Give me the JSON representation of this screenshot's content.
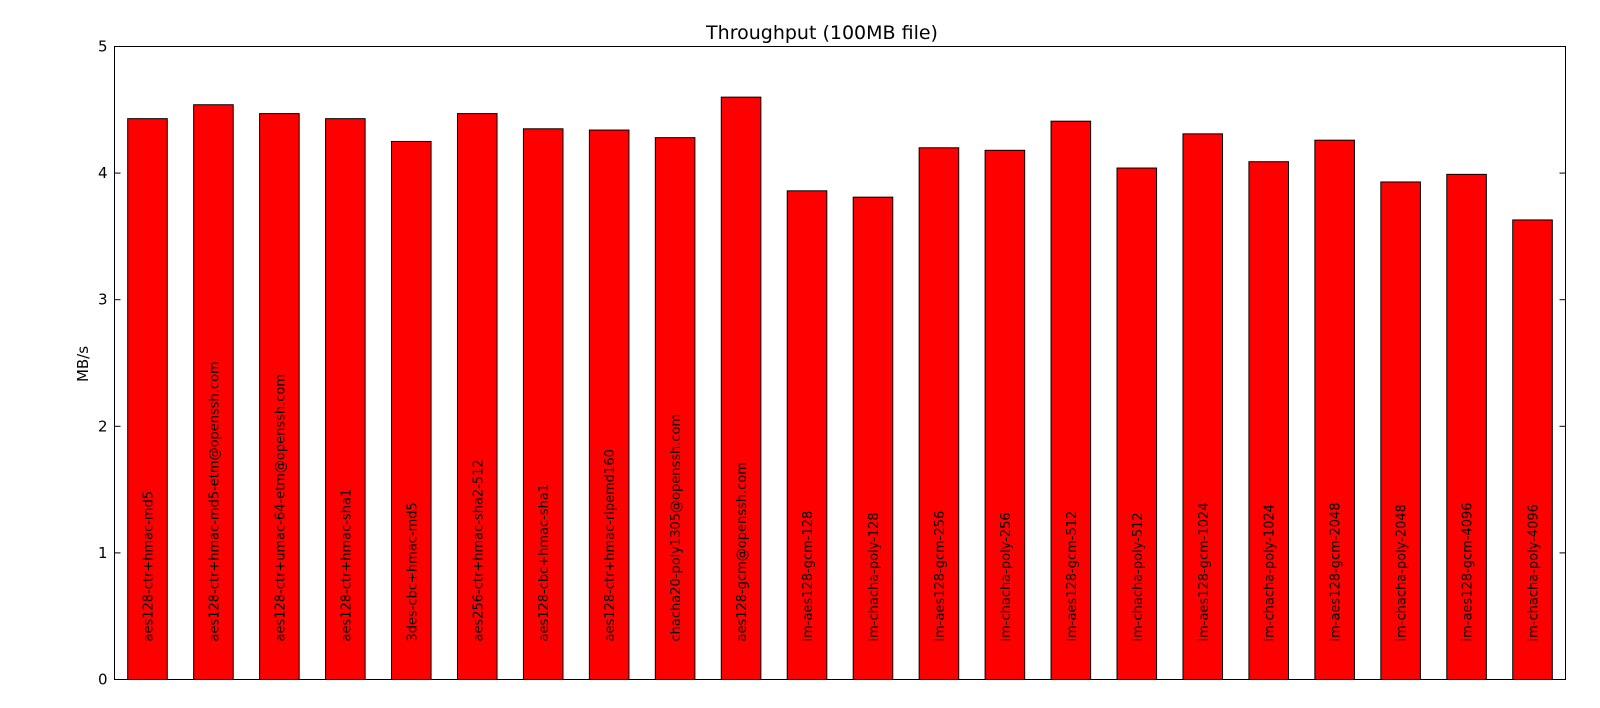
{
  "chart_data": {
    "type": "bar",
    "title": "Throughput (100MB file)",
    "xlabel": "",
    "ylabel": "MB/s",
    "ylim": [
      0,
      5
    ],
    "yticks": [
      0,
      1,
      2,
      3,
      4,
      5
    ],
    "grid": false,
    "legend": "none",
    "bar_color": "#ff0000",
    "categories": [
      "aes128-ctr+hmac-md5",
      "aes128-ctr+hmac-md5-etm@openssh.com",
      "aes128-ctr+umac-64-etm@openssh.com",
      "aes128-ctr+hmac-sha1",
      "3des-cbc+hmac-md5",
      "aes256-ctr+hmac-sha2-512",
      "aes128-cbc+hmac-sha1",
      "aes128-ctr+hmac-ripemd160",
      "chacha20-poly1305@openssh.com",
      "aes128-gcm@openssh.com",
      "im-aes128-gcm-128",
      "im-chacha-poly-128",
      "im-aes128-gcm-256",
      "im-chacha-poly-256",
      "im-aes128-gcm-512",
      "im-chacha-poly-512",
      "im-aes128-gcm-1024",
      "im-chacha-poly-1024",
      "im-aes128-gcm-2048",
      "im-chacha-poly-2048",
      "im-aes128-gcm-4096",
      "im-chacha-poly-4096"
    ],
    "values": [
      4.43,
      4.54,
      4.47,
      4.43,
      4.25,
      4.47,
      4.35,
      4.34,
      4.28,
      4.6,
      3.86,
      3.81,
      4.2,
      4.18,
      4.41,
      4.04,
      4.31,
      4.09,
      4.26,
      3.93,
      3.99,
      3.63
    ]
  }
}
